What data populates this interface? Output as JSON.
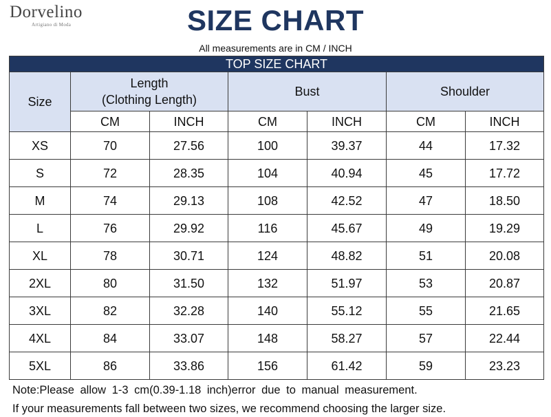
{
  "logo": {
    "name": "Dorvelino",
    "tagline": "Artigiano di Moda"
  },
  "title": "SIZE CHART",
  "subtitle": "All measurements are in CM / INCH",
  "table": {
    "banner": "TOP SIZE CHART",
    "size_header": "Size",
    "groups": [
      {
        "line1": "Length",
        "line2": "(Clothing Length)"
      },
      {
        "line1": "Bust",
        "line2": ""
      },
      {
        "line1": "Shoulder",
        "line2": ""
      }
    ],
    "units": [
      "CM",
      "INCH",
      "CM",
      "INCH",
      "CM",
      "INCH"
    ],
    "rows": [
      [
        "XS",
        "70",
        "27.56",
        "100",
        "39.37",
        "44",
        "17.32"
      ],
      [
        "S",
        "72",
        "28.35",
        "104",
        "40.94",
        "45",
        "17.72"
      ],
      [
        "M",
        "74",
        "29.13",
        "108",
        "42.52",
        "47",
        "18.50"
      ],
      [
        "L",
        "76",
        "29.92",
        "116",
        "45.67",
        "49",
        "19.29"
      ],
      [
        "XL",
        "78",
        "30.71",
        "124",
        "48.82",
        "51",
        "20.08"
      ],
      [
        "2XL",
        "80",
        "31.50",
        "132",
        "51.97",
        "53",
        "20.87"
      ],
      [
        "3XL",
        "82",
        "32.28",
        "140",
        "55.12",
        "55",
        "21.65"
      ],
      [
        "4XL",
        "84",
        "33.07",
        "148",
        "58.27",
        "57",
        "22.44"
      ],
      [
        "5XL",
        "86",
        "33.86",
        "156",
        "61.42",
        "59",
        "23.23"
      ]
    ]
  },
  "notes": [
    "Note:Please allow 1-3 cm(0.39-1.18 inch)error due to manual measurement.",
    "If your measurements fall between two sizes, we recommend choosing the larger size."
  ],
  "colors": {
    "header_navy": "#1f3660",
    "header_light": "#d9e1f2"
  }
}
